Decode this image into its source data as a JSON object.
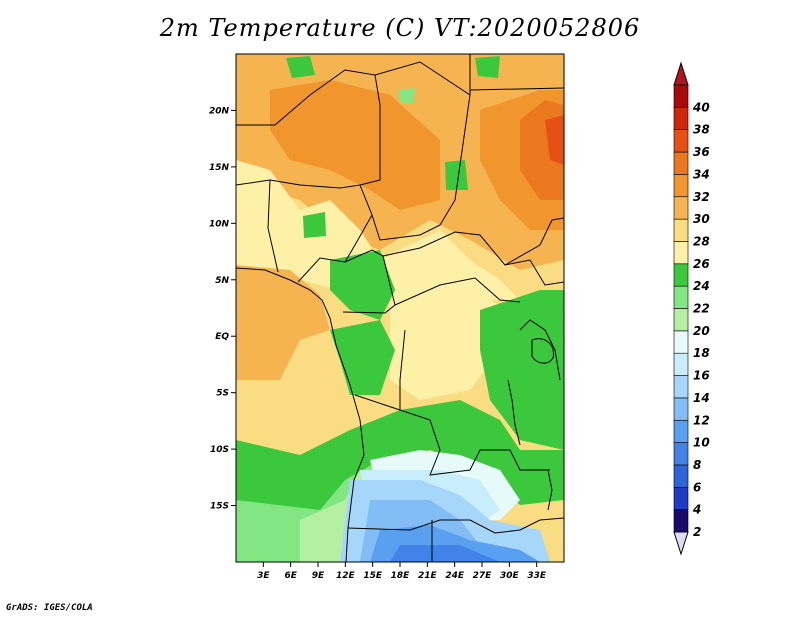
{
  "title": "2m Temperature (C) VT:2020052806",
  "credit": "GrADS: IGES/COLA",
  "map": {
    "variable": "2m Temperature",
    "units": "C",
    "valid_time": "2020052806",
    "lon_range": [
      0,
      36
    ],
    "lat_range": [
      -20,
      25
    ],
    "lon_ticks": [
      {
        "value": 3,
        "label": "3E"
      },
      {
        "value": 6,
        "label": "6E"
      },
      {
        "value": 9,
        "label": "9E"
      },
      {
        "value": 12,
        "label": "12E"
      },
      {
        "value": 15,
        "label": "15E"
      },
      {
        "value": 18,
        "label": "18E"
      },
      {
        "value": 21,
        "label": "21E"
      },
      {
        "value": 24,
        "label": "24E"
      },
      {
        "value": 27,
        "label": "27E"
      },
      {
        "value": 30,
        "label": "30E"
      },
      {
        "value": 33,
        "label": "33E"
      }
    ],
    "lat_ticks": [
      {
        "value": 20,
        "label": "20N"
      },
      {
        "value": 15,
        "label": "15N"
      },
      {
        "value": 10,
        "label": "10N"
      },
      {
        "value": 5,
        "label": "5N"
      },
      {
        "value": 0,
        "label": "EQ"
      },
      {
        "value": -5,
        "label": "5S"
      },
      {
        "value": -10,
        "label": "10S"
      },
      {
        "value": -15,
        "label": "15S"
      }
    ]
  },
  "colorbar": {
    "levels": [
      2,
      4,
      6,
      8,
      10,
      12,
      14,
      16,
      18,
      20,
      22,
      24,
      26,
      28,
      30,
      32,
      34,
      36,
      38,
      40
    ],
    "colors": [
      "#1a0a6e",
      "#1e3cc8",
      "#2d64dc",
      "#4183e6",
      "#5aa0f0",
      "#82bef5",
      "#a6d6fa",
      "#c8eefc",
      "#e6fafa",
      "#b4f0a0",
      "#82e682",
      "#3cc83c",
      "#fff0a8",
      "#fadc82",
      "#f5b450",
      "#f0962d",
      "#eb781e",
      "#e65014",
      "#d2280a",
      "#aa0a0a"
    ],
    "under_color": "#e0dcf8",
    "over_color": "#b4141e"
  }
}
